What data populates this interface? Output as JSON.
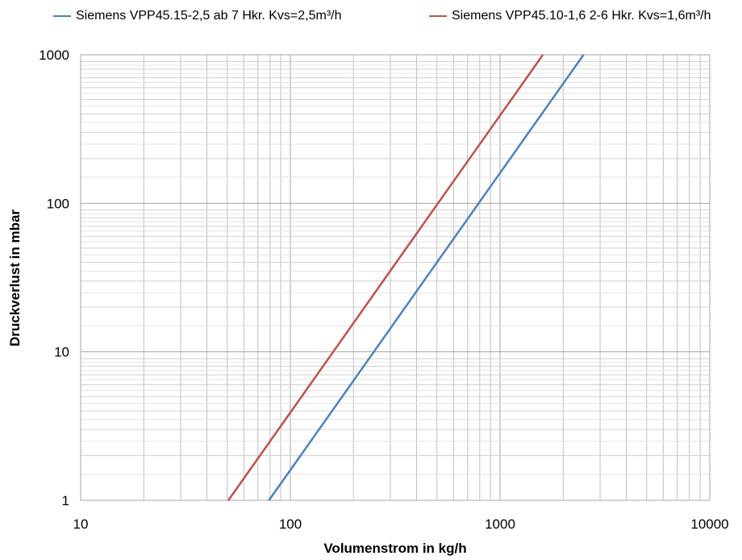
{
  "chart_data": {
    "type": "line",
    "xlabel": "Volumenstrom in kg/h",
    "ylabel": "Druckverlust in mbar",
    "x_scale": "log",
    "y_scale": "log",
    "xlim": [
      10,
      10000
    ],
    "ylim": [
      1,
      1000
    ],
    "x_ticks": [
      "10",
      "100",
      "1000",
      "10000"
    ],
    "y_ticks": [
      "1",
      "10",
      "100",
      "1000"
    ],
    "grid": true,
    "legend_position": "top",
    "series": [
      {
        "name": "Siemens VPP45.15-2,5 ab 7 Hkr. Kvs=2,5m³/h",
        "color": "#4f81bd",
        "x": [
          79,
          100,
          250,
          500,
          1000,
          2500
        ],
        "y": [
          1,
          1.6,
          10,
          40,
          160,
          1000
        ]
      },
      {
        "name": "Siemens VPP45.10-1,6 2-6 Hkr. Kvs=1,6m³/h",
        "color": "#c0504d",
        "x": [
          50.6,
          100,
          160,
          500,
          1000,
          1600
        ],
        "y": [
          1,
          3.9,
          10,
          97.7,
          390.6,
          1000
        ]
      }
    ]
  }
}
